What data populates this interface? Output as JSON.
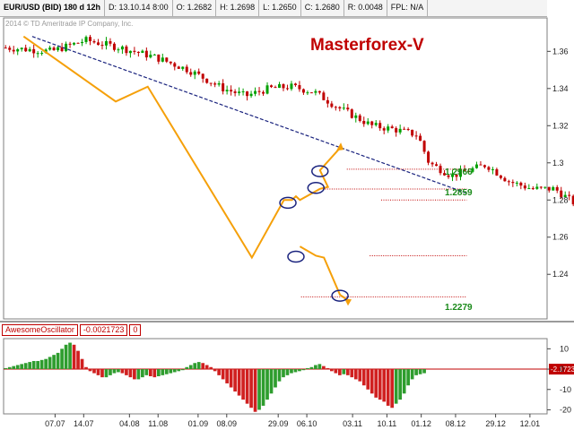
{
  "header": {
    "symbol": "EUR/USD (BID) 180 d 12h",
    "date": "D: 13.10.14 8:00",
    "open": "O: 1.2682",
    "high": "H: 1.2698",
    "low": "L: 1.2650",
    "close": "C: 1.2680",
    "range": "R: 0.0048",
    "fpl": "FPL: N/A"
  },
  "watermark": "2014 © TD Ameritrade IP Company, Inc.",
  "brand": "Masterforex-V",
  "indicator": {
    "name": "AwesomeOscillator",
    "value": "-0.0021723",
    "extra": "0",
    "current_label": "-2.1723"
  },
  "level_labels": [
    "1.2966",
    "1.2859",
    "1.2279"
  ],
  "colors": {
    "up_candle": "#00a000",
    "down_candle": "#c00000",
    "wave": "#f5a00a",
    "trendline": "#1a237e",
    "level": "#c00000",
    "ao_up": "#2e9d2e",
    "ao_down": "#d02020",
    "circle": "#1a237e",
    "level_text": "#1a8a1a"
  },
  "chart_data": {
    "type": "candlestick",
    "price_axis": {
      "ticks": [
        "1.36",
        "1.34",
        "1.32",
        "1.3",
        "1.28",
        "1.26",
        "1.24"
      ],
      "ylim": [
        1.216,
        1.378
      ]
    },
    "indicator_axis": {
      "ticks": [
        "10",
        "0",
        "-10",
        "-20"
      ],
      "ylim": [
        -22,
        15
      ]
    },
    "x_ticks": [
      "07.07",
      "14.07",
      "04.08",
      "11.08",
      "01.09",
      "08.09",
      "29.09",
      "06.10",
      "03.11",
      "10.11",
      "01.12",
      "08.12",
      "29.12",
      "12.01"
    ],
    "close_path": [
      [
        0,
        1.362
      ],
      [
        8,
        1.36
      ],
      [
        14,
        1.366
      ],
      [
        20,
        1.362
      ],
      [
        26,
        1.357
      ],
      [
        32,
        1.35
      ],
      [
        38,
        1.34
      ],
      [
        42,
        1.336
      ],
      [
        46,
        1.34
      ],
      [
        50,
        1.341
      ],
      [
        54,
        1.338
      ],
      [
        58,
        1.33
      ],
      [
        64,
        1.32
      ],
      [
        68,
        1.318
      ],
      [
        72,
        1.315
      ],
      [
        74,
        1.3
      ],
      [
        78,
        1.293
      ],
      [
        82,
        1.297
      ],
      [
        84,
        1.299
      ],
      [
        88,
        1.29
      ],
      [
        92,
        1.286
      ],
      [
        96,
        1.286
      ],
      [
        100,
        1.277
      ],
      [
        104,
        1.266
      ],
      [
        108,
        1.258
      ],
      [
        110,
        1.263
      ],
      [
        113,
        1.27
      ],
      [
        116,
        1.263
      ],
      [
        118,
        1.265
      ],
      [
        120,
        1.268
      ]
    ],
    "ao_values": [
      0.5,
      1,
      1.5,
      2,
      2.5,
      3,
      3.5,
      4,
      4,
      4.5,
      5,
      6,
      7,
      8,
      10,
      12,
      13,
      12,
      9,
      5,
      1,
      -1,
      -2,
      -3,
      -4,
      -4,
      -3,
      -2,
      -1.5,
      -2,
      -3,
      -4,
      -5,
      -5,
      -4,
      -3,
      -3.5,
      -4,
      -3.5,
      -3,
      -2.5,
      -2,
      -1.5,
      -1,
      -0.5,
      1,
      2,
      3,
      3.5,
      3,
      2,
      1,
      -1,
      -3,
      -5,
      -7,
      -9,
      -11,
      -13,
      -15,
      -17,
      -19,
      -21,
      -20,
      -18,
      -15,
      -12,
      -9,
      -6,
      -4,
      -3,
      -2,
      -1.5,
      -1,
      -0.5,
      0.5,
      1,
      2,
      2.5,
      1.5,
      0.5,
      -1,
      -2,
      -3,
      -2.5,
      -3,
      -4,
      -5,
      -6,
      -8,
      -10,
      -12,
      -14,
      -15,
      -16,
      -18,
      -19,
      -17,
      -15,
      -12,
      -8,
      -5,
      -3,
      -2.5,
      -2
    ],
    "wave_points": [
      [
        5,
        1.368
      ],
      [
        28,
        1.333
      ],
      [
        36,
        1.341
      ],
      [
        62,
        1.249
      ],
      [
        70,
        1.28
      ],
      [
        72,
        1.28
      ],
      [
        73,
        1.282
      ],
      [
        74,
        1.28
      ],
      [
        79,
        1.286
      ],
      [
        81,
        1.287
      ],
      [
        79,
        1.296
      ],
      [
        84,
        1.308
      ]
    ],
    "wave_down": [
      [
        74,
        1.255
      ],
      [
        78,
        1.25
      ],
      [
        80,
        1.249
      ],
      [
        84,
        1.229
      ],
      [
        86,
        1.226
      ]
    ],
    "trendline": [
      [
        5,
        1.368
      ],
      [
        90,
        1.285
      ]
    ],
    "levels": [
      {
        "price": 1.2966,
        "x0": 60,
        "x1": 96
      },
      {
        "price": 1.2859,
        "x0": 55,
        "x1": 96
      },
      {
        "price": 1.28,
        "x0": 66,
        "x1": 96
      },
      {
        "price": 1.25,
        "x0": 64,
        "x1": 96
      },
      {
        "price": 1.2279,
        "x0": 52,
        "x1": 96
      }
    ],
    "circles": [
      {
        "x": 71,
        "price": 1.2785
      },
      {
        "x": 78,
        "price": 1.2865
      },
      {
        "x": 79,
        "price": 1.2955
      },
      {
        "x": 73,
        "price": 1.2495
      },
      {
        "x": 84,
        "price": 1.2285
      }
    ]
  }
}
